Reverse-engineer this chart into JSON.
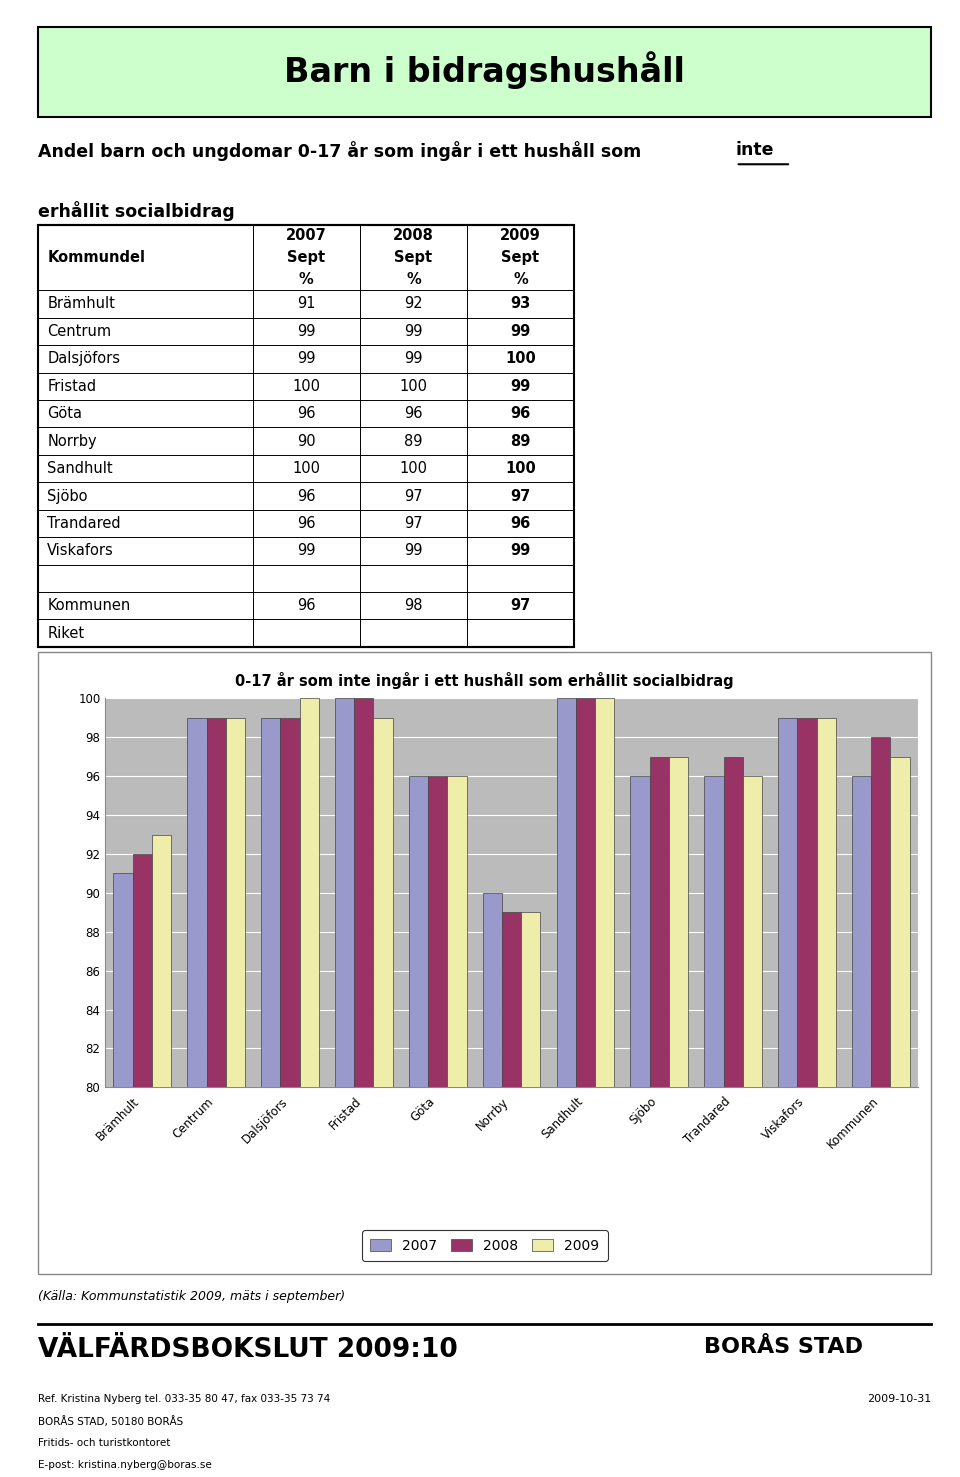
{
  "title": "Barn i bidragshushåll",
  "subtitle_part1": "Andel barn och ungdomar 0-17 år som ingår i ett hushåll som ",
  "subtitle_underline": "inte",
  "subtitle_line2": "erhållit socialbidrag",
  "table_rows": [
    [
      "Brämhult",
      91,
      92,
      93
    ],
    [
      "Centrum",
      99,
      99,
      99
    ],
    [
      "Dalsjöfors",
      99,
      99,
      100
    ],
    [
      "Fristad",
      100,
      100,
      99
    ],
    [
      "Göta",
      96,
      96,
      96
    ],
    [
      "Norrby",
      90,
      89,
      89
    ],
    [
      "Sandhult",
      100,
      100,
      100
    ],
    [
      "Sjöbo",
      96,
      97,
      97
    ],
    [
      "Trandared",
      96,
      97,
      96
    ],
    [
      "Viskafors",
      99,
      99,
      99
    ],
    [
      "",
      "",
      "",
      ""
    ],
    [
      "Kommunen",
      96,
      98,
      97
    ],
    [
      "Riket",
      "",
      "",
      ""
    ]
  ],
  "chart_title": "0-17 år som inte ingår i ett hushåll som erhållit socialbidrag",
  "categories": [
    "Brämhult",
    "Centrum",
    "Dalsjöfors",
    "Fristad",
    "Göta",
    "Norrby",
    "Sandhult",
    "Sjöbo",
    "Trandared",
    "Viskafors",
    "Kommunen"
  ],
  "series_2007": [
    91,
    99,
    99,
    100,
    96,
    90,
    100,
    96,
    96,
    99,
    96
  ],
  "series_2008": [
    92,
    99,
    99,
    100,
    96,
    89,
    100,
    97,
    97,
    99,
    98
  ],
  "series_2009": [
    93,
    99,
    100,
    99,
    96,
    89,
    100,
    97,
    96,
    99,
    97
  ],
  "color_2007": "#9999cc",
  "color_2008": "#993366",
  "color_2009": "#eeeeaa",
  "bar_edge_color": "#444444",
  "chart_bg_color": "#bbbbbb",
  "ylim_min": 80,
  "ylim_max": 100,
  "yticks": [
    80,
    82,
    84,
    86,
    88,
    90,
    92,
    94,
    96,
    98,
    100
  ],
  "legend_labels": [
    "2007",
    "2008",
    "2009"
  ],
  "source_text": "(Källa: Kommunstatistik 2009, mäts i september)",
  "footer_title": "VÄLFÄRDSBOKSLUT 2009:10",
  "footer_ref": "Ref. Kristina Nyberg tel. 033-35 80 47, fax 033-35 73 74",
  "footer_addr1": "BORÅS STAD, 50180 BORÅS",
  "footer_addr2": "Fritids- och turistkontoret",
  "footer_email": "E-post: kristina.nyberg@boras.se",
  "footer_date": "2009-10-31",
  "footer_brand": "BORÅS STAD",
  "header_bg_color": "#ccffcc",
  "page_bg_color": "#ffffff"
}
